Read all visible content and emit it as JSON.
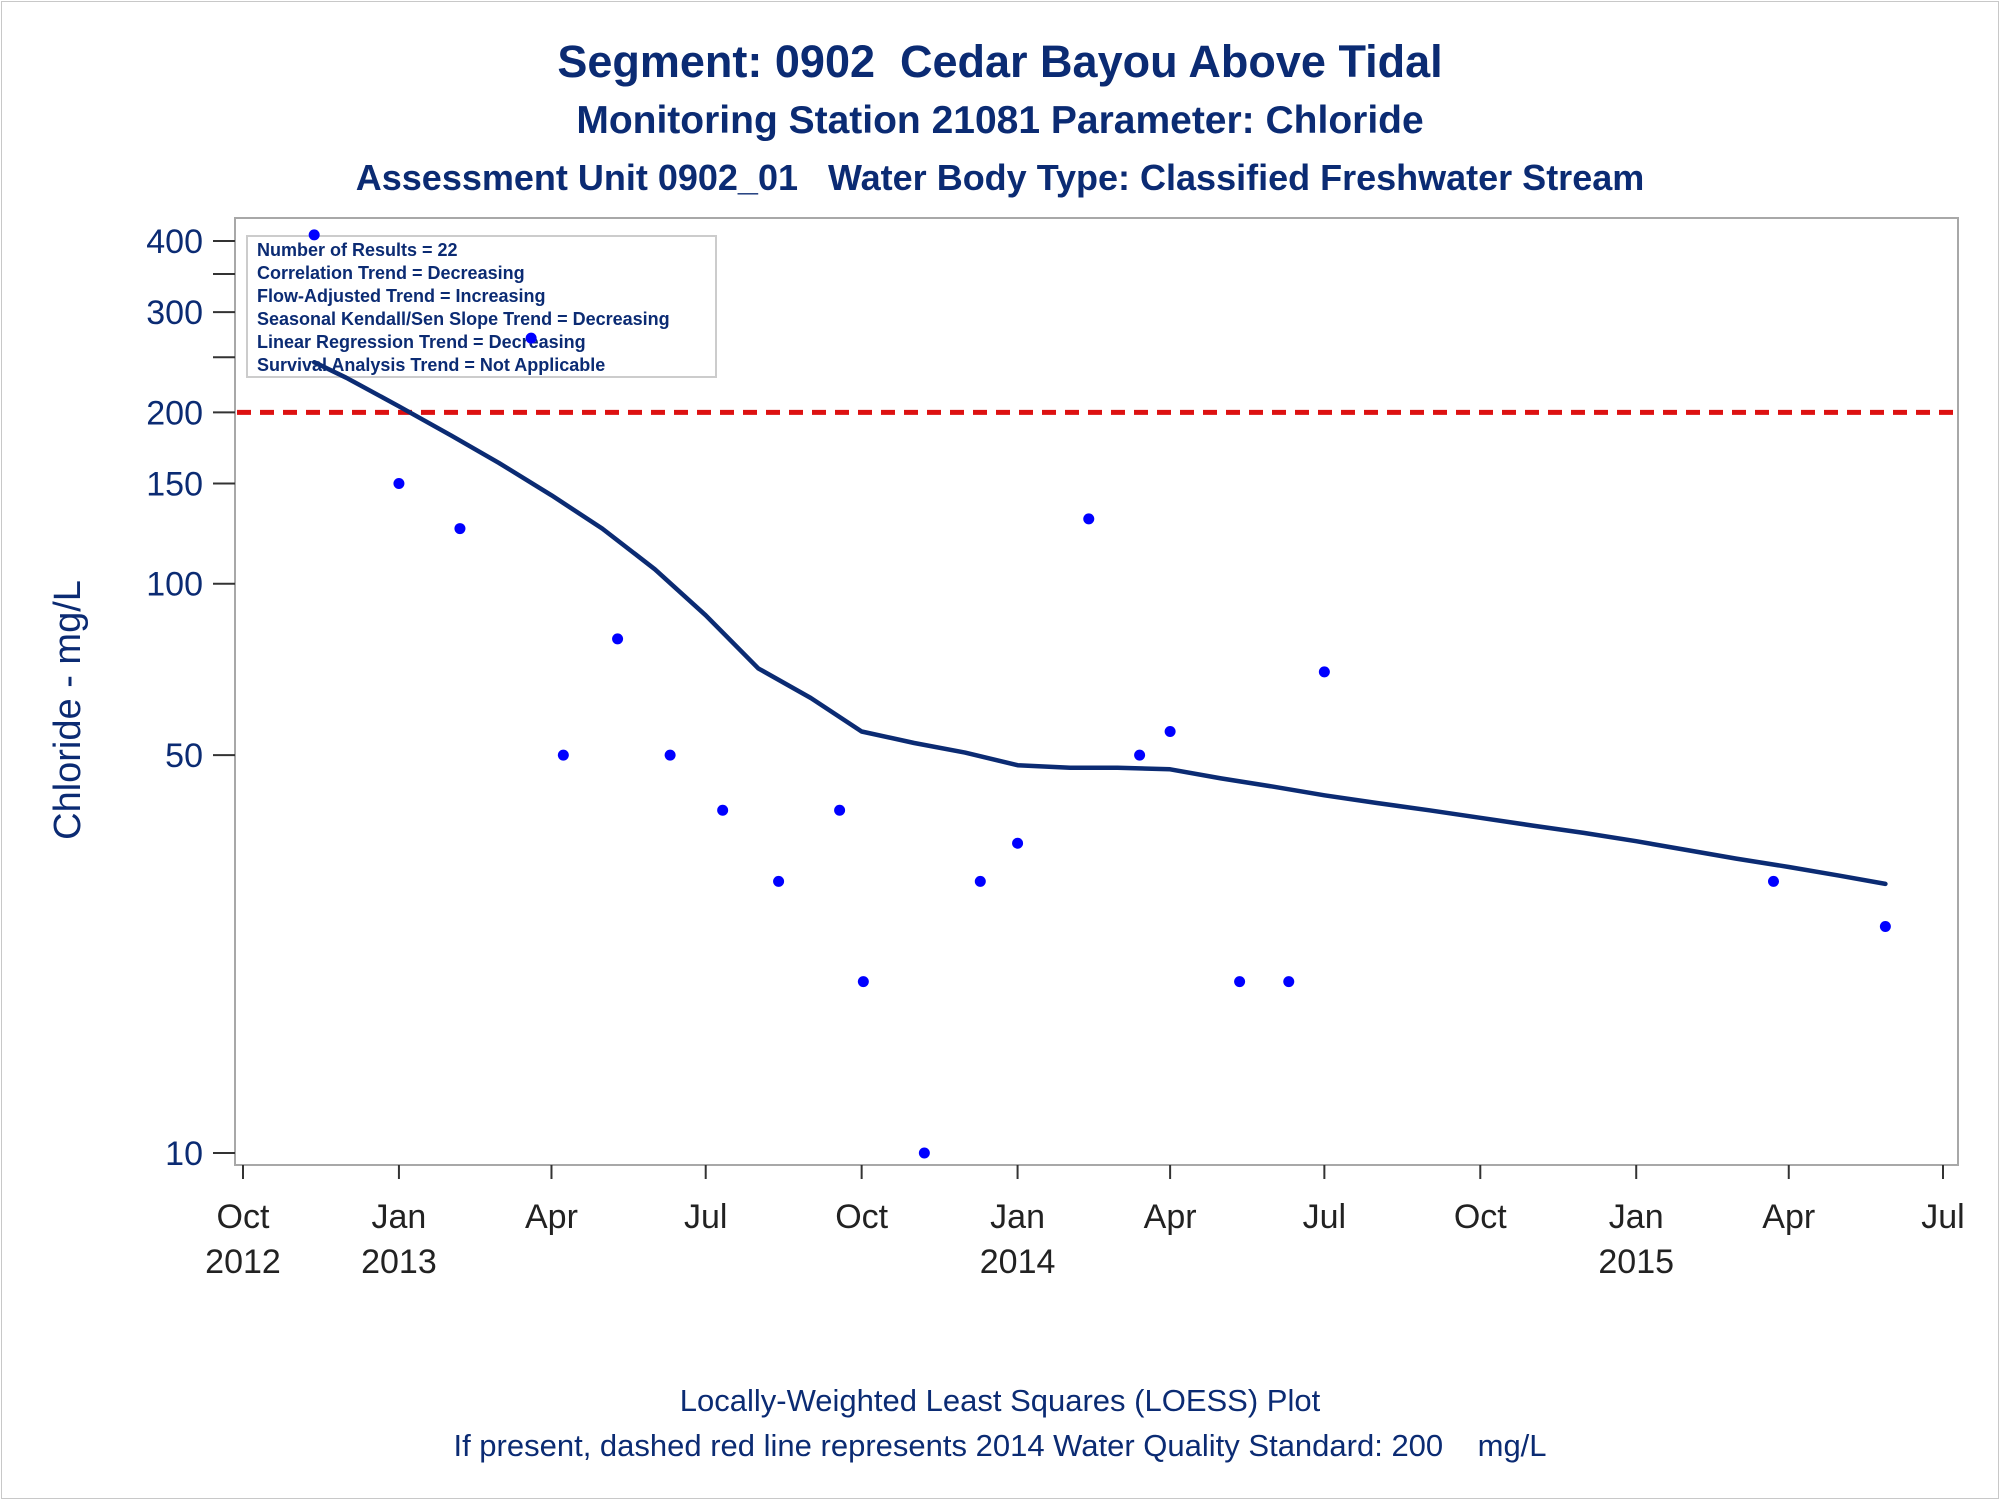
{
  "chart_data": {
    "type": "scatter",
    "title": "Segment: 0902  Cedar Bayou Above Tidal",
    "subtitle": "Monitoring Station 21081 Parameter: Chloride",
    "subtitle2": "Assessment Unit 0902_01   Water Body Type: Classified Freshwater Stream",
    "ylabel": "Chloride - mg/L",
    "xlabel": "",
    "yscale": "log",
    "ylim": [
      9.5,
      450
    ],
    "xlim": [
      "2012-10-01",
      "2015-07-01"
    ],
    "grid": false,
    "y_ticks": [
      10,
      50,
      100,
      150,
      200,
      300,
      400
    ],
    "y_minor_ticks": [
      250,
      350
    ],
    "x_ticks": [
      {
        "date": "2012-10-01",
        "label": "Oct",
        "year": "2012"
      },
      {
        "date": "2013-01-01",
        "label": "Jan",
        "year": "2013"
      },
      {
        "date": "2013-04-01",
        "label": "Apr",
        "year": ""
      },
      {
        "date": "2013-07-01",
        "label": "Jul",
        "year": ""
      },
      {
        "date": "2013-10-01",
        "label": "Oct",
        "year": ""
      },
      {
        "date": "2014-01-01",
        "label": "Jan",
        "year": "2014"
      },
      {
        "date": "2014-04-01",
        "label": "Apr",
        "year": ""
      },
      {
        "date": "2014-07-01",
        "label": "Jul",
        "year": ""
      },
      {
        "date": "2014-10-01",
        "label": "Oct",
        "year": ""
      },
      {
        "date": "2015-01-01",
        "label": "Jan",
        "year": "2015"
      },
      {
        "date": "2015-04-01",
        "label": "Apr",
        "year": ""
      },
      {
        "date": "2015-07-01",
        "label": "Jul",
        "year": ""
      }
    ],
    "points": [
      {
        "date": "2012-11-12",
        "y": 410
      },
      {
        "date": "2013-01-01",
        "y": 150
      },
      {
        "date": "2013-02-06",
        "y": 125
      },
      {
        "date": "2013-03-20",
        "y": 270
      },
      {
        "date": "2013-04-08",
        "y": 50
      },
      {
        "date": "2013-05-10",
        "y": 80
      },
      {
        "date": "2013-06-10",
        "y": 50
      },
      {
        "date": "2013-07-11",
        "y": 40
      },
      {
        "date": "2013-08-13",
        "y": 30
      },
      {
        "date": "2013-09-18",
        "y": 40
      },
      {
        "date": "2013-10-02",
        "y": 20
      },
      {
        "date": "2013-11-07",
        "y": 10
      },
      {
        "date": "2013-12-10",
        "y": 30
      },
      {
        "date": "2014-01-01",
        "y": 35
      },
      {
        "date": "2014-02-12",
        "y": 130
      },
      {
        "date": "2014-03-14",
        "y": 50
      },
      {
        "date": "2014-04-01",
        "y": 55
      },
      {
        "date": "2014-05-12",
        "y": 20
      },
      {
        "date": "2014-06-10",
        "y": 20
      },
      {
        "date": "2014-07-01",
        "y": 70
      },
      {
        "date": "2015-03-23",
        "y": 30
      },
      {
        "date": "2015-05-28",
        "y": 25
      }
    ],
    "loess": [
      {
        "date": "2012-11-12",
        "y": 245
      },
      {
        "date": "2012-12-01",
        "y": 230
      },
      {
        "date": "2013-01-01",
        "y": 205
      },
      {
        "date": "2013-02-01",
        "y": 182
      },
      {
        "date": "2013-03-01",
        "y": 163
      },
      {
        "date": "2013-04-01",
        "y": 143
      },
      {
        "date": "2013-05-01",
        "y": 125
      },
      {
        "date": "2013-06-01",
        "y": 106
      },
      {
        "date": "2013-07-01",
        "y": 88
      },
      {
        "date": "2013-08-01",
        "y": 71
      },
      {
        "date": "2013-09-01",
        "y": 63
      },
      {
        "date": "2013-10-01",
        "y": 55
      },
      {
        "date": "2013-11-01",
        "y": 52.5
      },
      {
        "date": "2013-12-01",
        "y": 50.5
      },
      {
        "date": "2014-01-01",
        "y": 48
      },
      {
        "date": "2014-02-01",
        "y": 47.5
      },
      {
        "date": "2014-03-01",
        "y": 47.5
      },
      {
        "date": "2014-04-01",
        "y": 47.2
      },
      {
        "date": "2014-05-01",
        "y": 45.5
      },
      {
        "date": "2014-06-01",
        "y": 44
      },
      {
        "date": "2014-07-01",
        "y": 42.5
      },
      {
        "date": "2014-08-01",
        "y": 41.2
      },
      {
        "date": "2014-09-01",
        "y": 40
      },
      {
        "date": "2014-10-01",
        "y": 38.8
      },
      {
        "date": "2014-11-01",
        "y": 37.6
      },
      {
        "date": "2014-12-01",
        "y": 36.5
      },
      {
        "date": "2015-01-01",
        "y": 35.3
      },
      {
        "date": "2015-02-01",
        "y": 34
      },
      {
        "date": "2015-03-01",
        "y": 32.9
      },
      {
        "date": "2015-04-01",
        "y": 31.8
      },
      {
        "date": "2015-05-01",
        "y": 30.7
      },
      {
        "date": "2015-05-28",
        "y": 29.7
      }
    ],
    "reference_line": {
      "y": 200,
      "color": "#dd1111",
      "style": "dashed"
    },
    "colors": {
      "points": "#0000ff",
      "loess": "#0b2b73",
      "text": "#0b2b73",
      "frame": "#a8a8a8"
    },
    "stats_box": {
      "placement": "top-left",
      "lines": [
        "Number of Results = 22",
        "Correlation Trend = Decreasing",
        "Flow-Adjusted Trend = Increasing",
        "Seasonal Kendall/Sen Slope Trend = Decreasing",
        "Linear Regression Trend = Decreasing",
        "Survival Analysis Trend = Not Applicable"
      ]
    },
    "footnotes": [
      "Locally-Weighted Least Squares (LOESS) Plot",
      "If present, dashed red line represents 2014 Water Quality Standard: 200    mg/L"
    ]
  }
}
